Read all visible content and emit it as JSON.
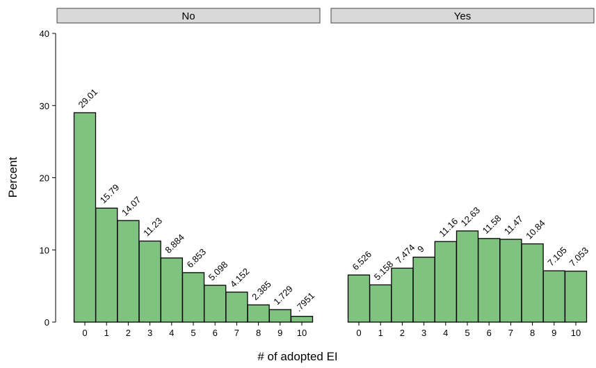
{
  "chart_data": {
    "type": "bar",
    "y_label": "Percent",
    "x_label": "# of adopted EI",
    "categories": [
      "0",
      "1",
      "2",
      "3",
      "4",
      "5",
      "6",
      "7",
      "8",
      "9",
      "10"
    ],
    "color": "#80c280",
    "ylim": [
      0,
      40
    ],
    "yticks": [
      0,
      10,
      20,
      30,
      40
    ],
    "facets": [
      {
        "title": "No",
        "values": [
          29.01,
          15.79,
          14.07,
          11.23,
          8.884,
          6.853,
          5.098,
          4.152,
          2.385,
          1.729,
          0.7951
        ],
        "value_labels": [
          "29.01",
          "15.79",
          "14.07",
          "11.23",
          "8.884",
          "6.853",
          "5.098",
          "4.152",
          "2.385",
          "1.729",
          ".7951"
        ]
      },
      {
        "title": "Yes",
        "values": [
          6.526,
          5.158,
          7.474,
          9,
          11.16,
          12.63,
          11.58,
          11.47,
          10.84,
          7.105,
          7.053
        ],
        "value_labels": [
          "6.526",
          "5.158",
          "7.474",
          "9",
          "11.16",
          "12.63",
          "11.58",
          "11.47",
          "10.84",
          "7.105",
          "7.053"
        ]
      }
    ]
  }
}
